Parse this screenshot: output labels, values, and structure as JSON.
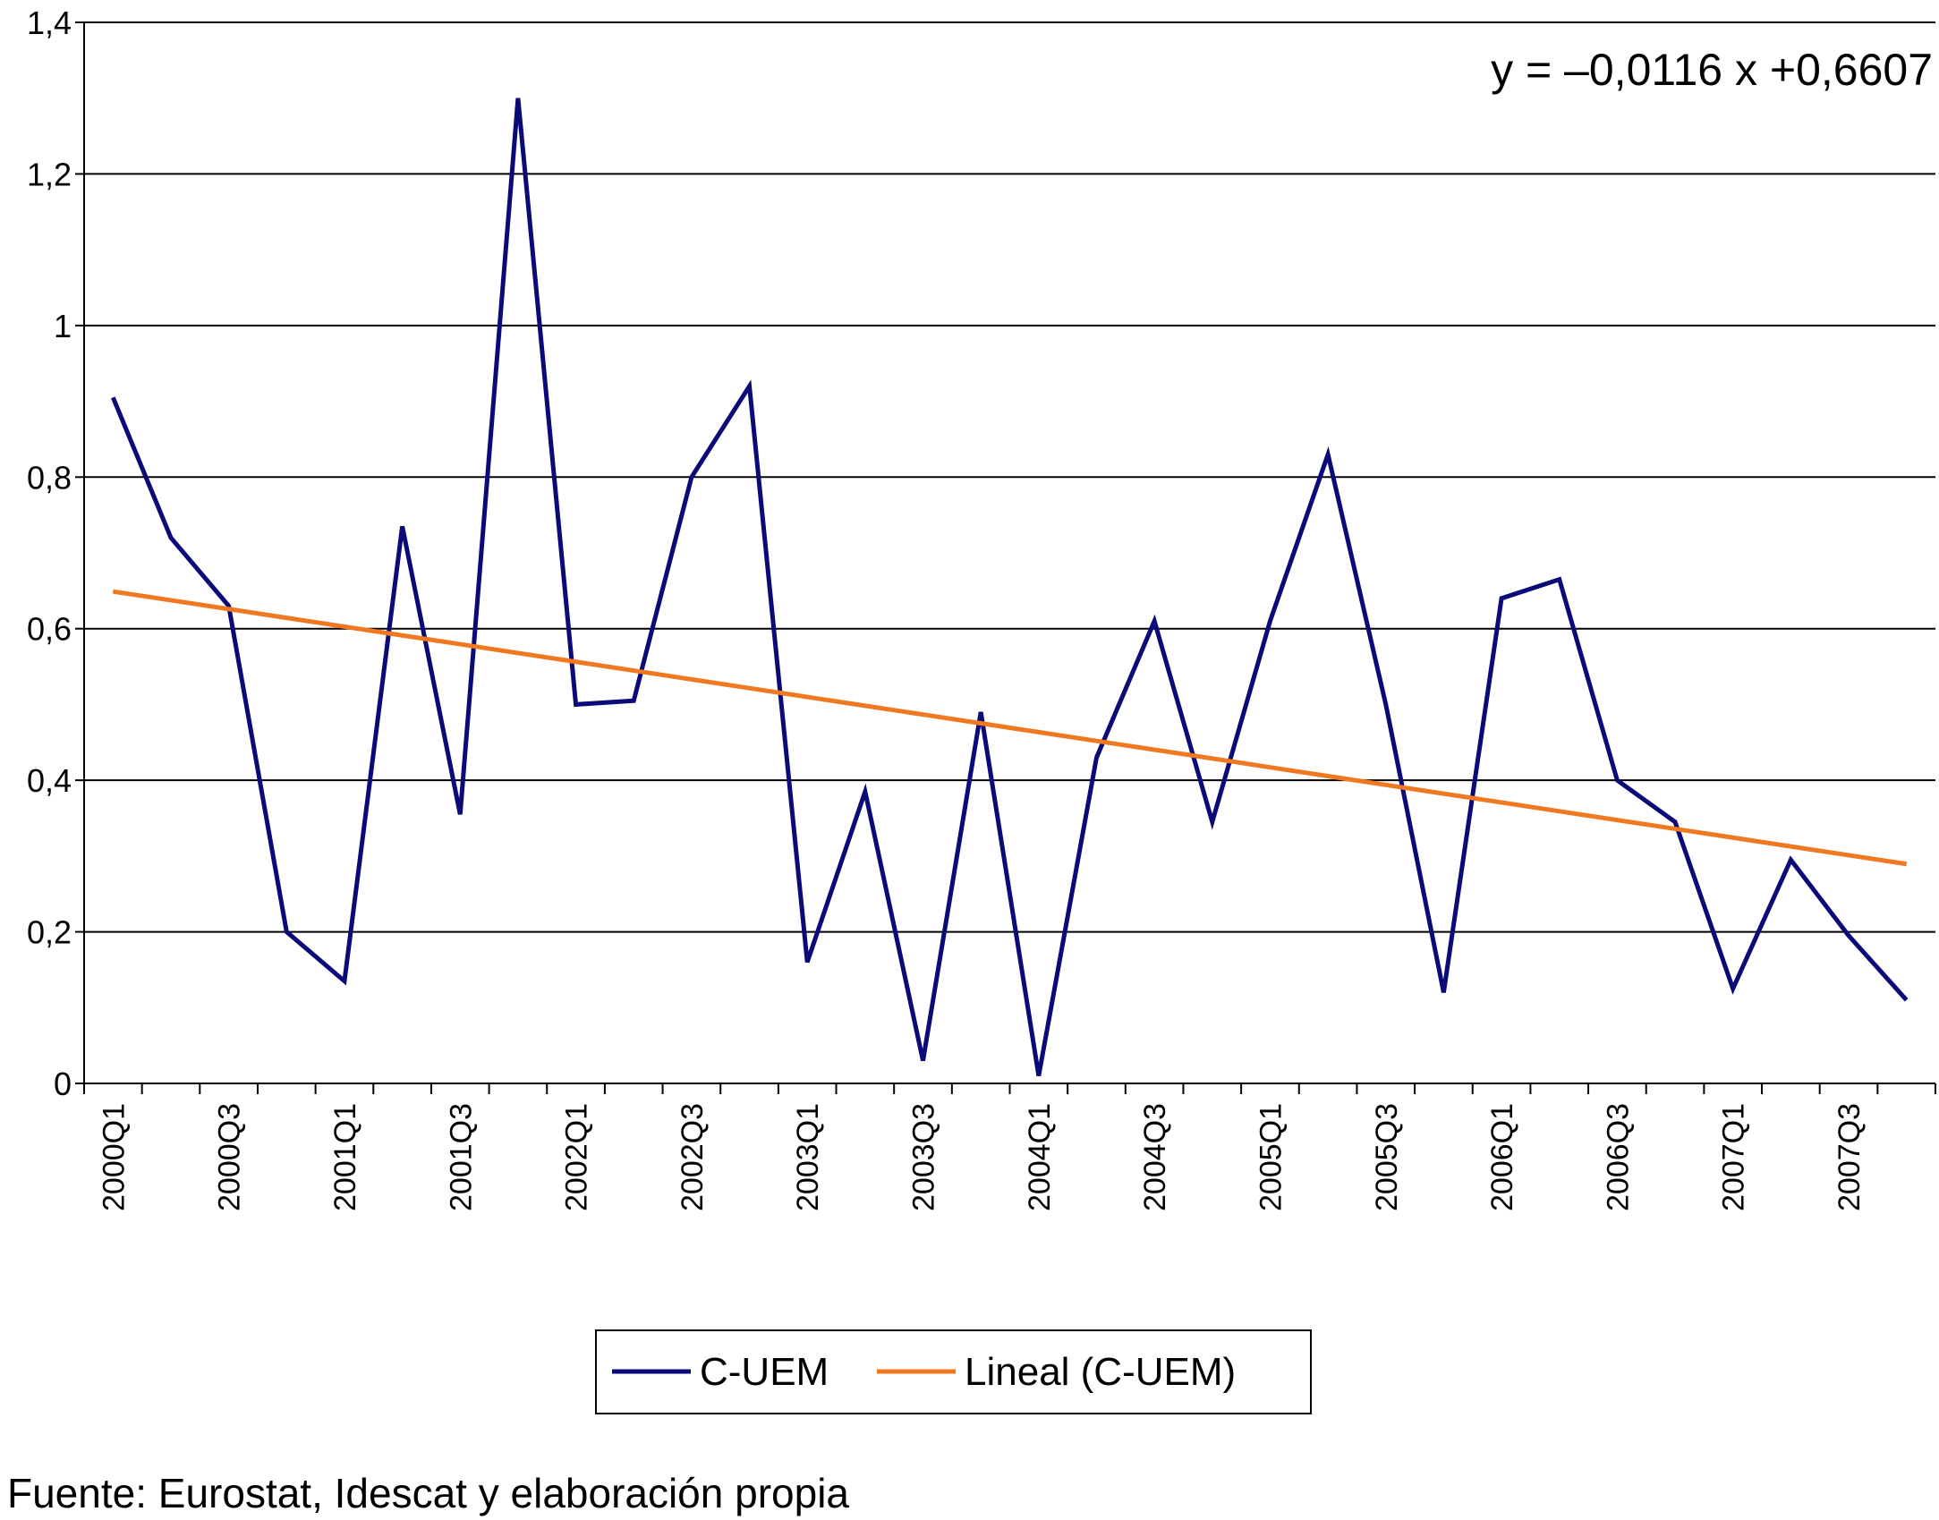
{
  "chart_data": {
    "type": "line",
    "annotation": "y = –0,0116 x +0,6607",
    "source": "Fuente: Eurostat, Idescat y elaboración propia",
    "categories": [
      "2000Q1",
      null,
      "2000Q3",
      null,
      "2001Q1",
      null,
      "2001Q3",
      null,
      "2002Q1",
      null,
      "2002Q3",
      null,
      "2003Q1",
      null,
      "2003Q3",
      null,
      "2004Q1",
      null,
      "2004Q3",
      null,
      "2005Q1",
      null,
      "2005Q3",
      null,
      "2006Q1",
      null,
      "2006Q3",
      null,
      "2007Q1",
      null,
      "2007Q3",
      null
    ],
    "series": [
      {
        "name": "C-UEM",
        "color": "#0a0a78",
        "values": [
          0.905,
          0.72,
          0.63,
          0.2,
          0.135,
          0.735,
          0.355,
          1.3,
          0.5,
          0.505,
          0.8,
          0.92,
          0.16,
          0.385,
          0.03,
          0.49,
          0.01,
          0.43,
          0.61,
          0.345,
          0.61,
          0.83,
          0.5,
          0.12,
          0.64,
          0.665,
          0.4,
          0.345,
          0.125,
          0.295,
          0.195,
          0.11
        ]
      },
      {
        "name": "Lineal (C-UEM)",
        "color": "#f07820",
        "values": [
          0.6491,
          0.6375,
          0.6259,
          0.6143,
          0.6027,
          0.5911,
          0.5795,
          0.5679,
          0.5563,
          0.5447,
          0.5331,
          0.5215,
          0.5099,
          0.4983,
          0.4867,
          0.4751,
          0.4635,
          0.4519,
          0.4403,
          0.4287,
          0.4171,
          0.4055,
          0.3939,
          0.3823,
          0.3707,
          0.3591,
          0.3475,
          0.3359,
          0.3243,
          0.3127,
          0.3011,
          0.2895
        ]
      }
    ],
    "ylim": [
      0,
      1.4
    ],
    "yticks": [
      0,
      {
        "value": 0.2,
        "label": "0,2"
      },
      {
        "value": 0.4,
        "label": "0,4"
      },
      {
        "value": 0.6,
        "label": "0,6"
      },
      {
        "value": 0.8,
        "label": "0,8"
      },
      1,
      {
        "value": 1.2,
        "label": "1,2"
      },
      {
        "value": 1.4,
        "label": "1,4"
      }
    ],
    "grid": true
  }
}
